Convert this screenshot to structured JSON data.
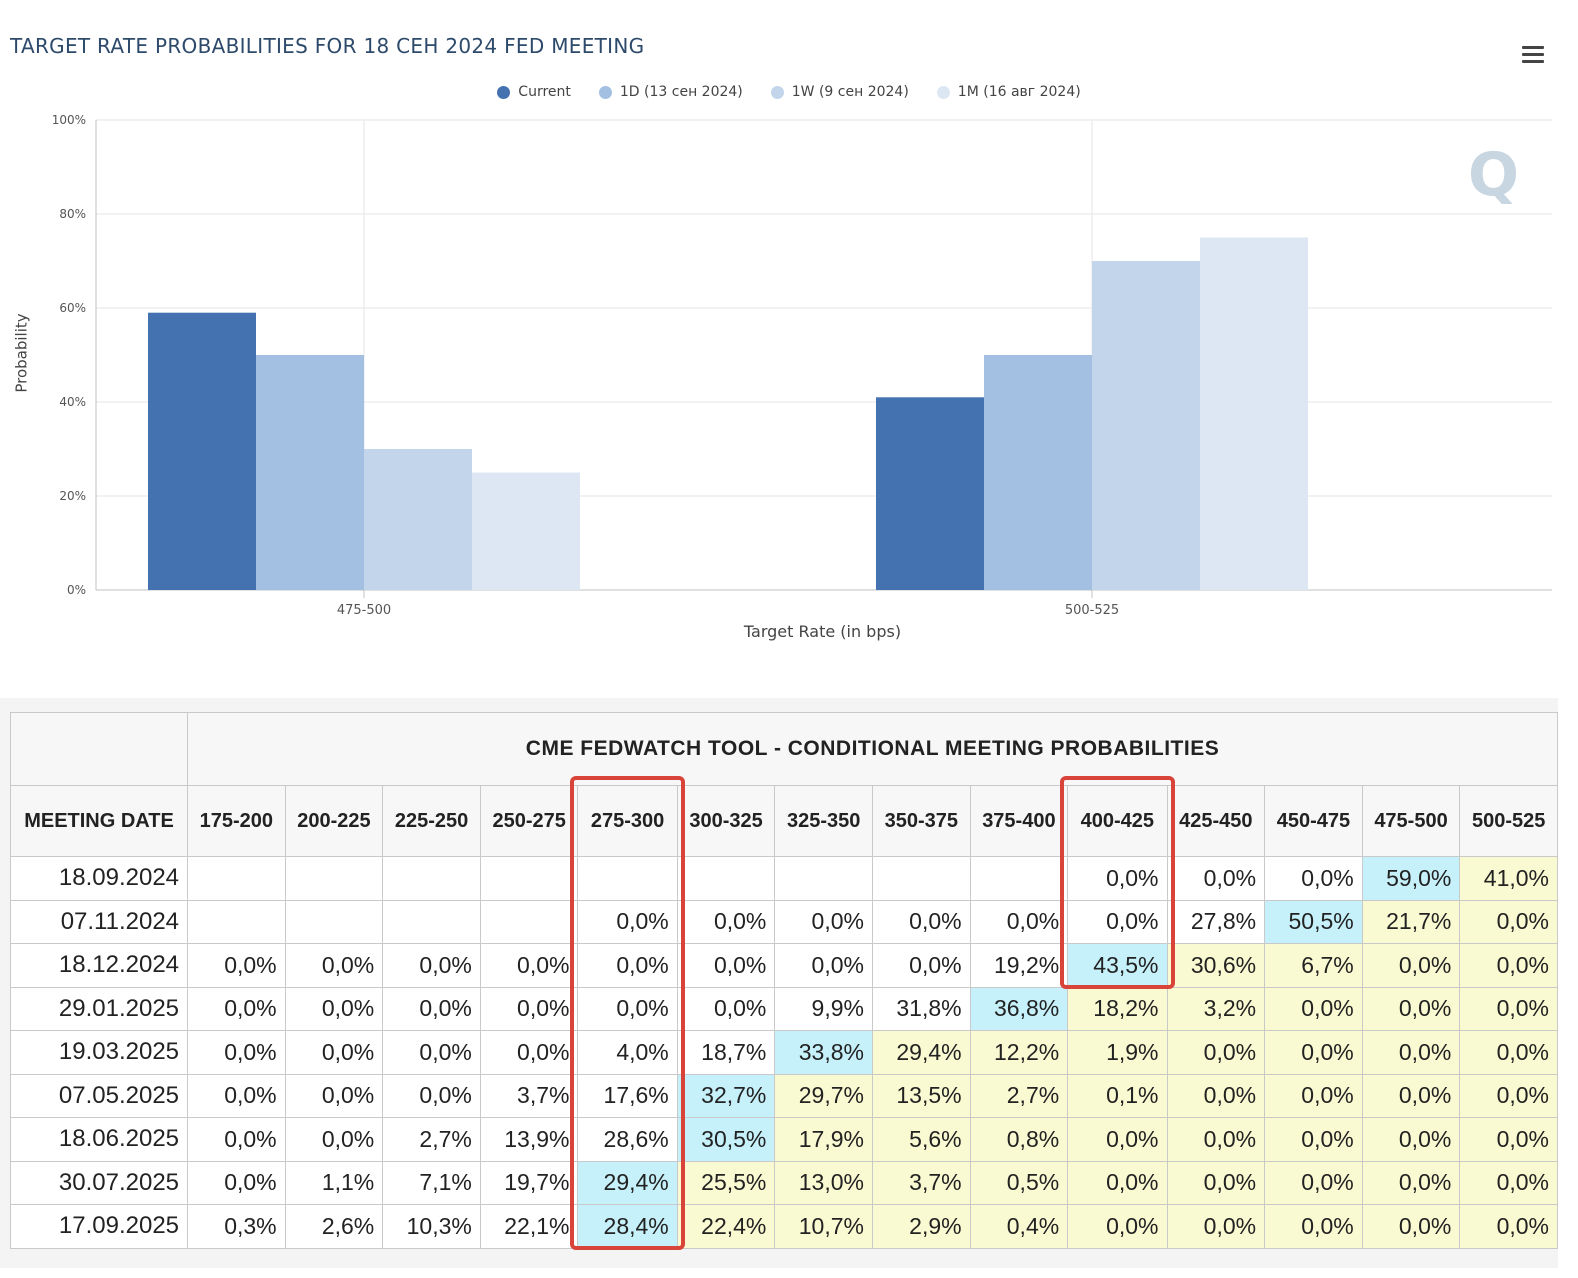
{
  "chart_data": {
    "type": "bar",
    "title": "TARGET RATE PROBABILITIES FOR 18 СЕН 2024 FED MEETING",
    "xlabel": "Target Rate (in bps)",
    "ylabel": "Probability",
    "ylim": [
      0,
      100
    ],
    "y_ticks": [
      "0%",
      "20%",
      "40%",
      "60%",
      "80%",
      "100%"
    ],
    "categories": [
      "475-500",
      "500-525"
    ],
    "series": [
      {
        "name": "Current",
        "values": [
          59.0,
          41.0
        ],
        "color": "#4472b0"
      },
      {
        "name": "1D (13 сен 2024)",
        "values": [
          50.0,
          50.0
        ],
        "color": "#a3bfe2"
      },
      {
        "name": "1W (9 сен 2024)",
        "values": [
          30.0,
          70.0
        ],
        "color": "#c3d5eb"
      },
      {
        "name": "1M (16 авг 2024)",
        "values": [
          25.0,
          75.0
        ],
        "color": "#dde7f4"
      }
    ],
    "legend_position": "top-center",
    "grid": true
  },
  "menu_icon": "hamburger-menu-icon",
  "watermark": "Q",
  "table": {
    "caption": "CME FEDWATCH TOOL - CONDITIONAL MEETING PROBABILITIES",
    "date_header": "MEETING DATE",
    "columns": [
      "175-200",
      "200-225",
      "225-250",
      "250-275",
      "275-300",
      "300-325",
      "325-350",
      "350-375",
      "375-400",
      "400-425",
      "425-450",
      "450-475",
      "475-500",
      "500-525"
    ],
    "rows": [
      {
        "date": "18.09.2024",
        "values": [
          "",
          "",
          "",
          "",
          "",
          "",
          "",
          "",
          "",
          "0,0%",
          "0,0%",
          "0,0%",
          "59,0%",
          "41,0%"
        ]
      },
      {
        "date": "07.11.2024",
        "values": [
          "",
          "",
          "",
          "",
          "0,0%",
          "0,0%",
          "0,0%",
          "0,0%",
          "0,0%",
          "0,0%",
          "27,8%",
          "50,5%",
          "21,7%",
          "0,0%"
        ]
      },
      {
        "date": "18.12.2024",
        "values": [
          "0,0%",
          "0,0%",
          "0,0%",
          "0,0%",
          "0,0%",
          "0,0%",
          "0,0%",
          "0,0%",
          "19,2%",
          "43,5%",
          "30,6%",
          "6,7%",
          "0,0%",
          "0,0%"
        ]
      },
      {
        "date": "29.01.2025",
        "values": [
          "0,0%",
          "0,0%",
          "0,0%",
          "0,0%",
          "0,0%",
          "0,0%",
          "9,9%",
          "31,8%",
          "36,8%",
          "18,2%",
          "3,2%",
          "0,0%",
          "0,0%",
          "0,0%"
        ]
      },
      {
        "date": "19.03.2025",
        "values": [
          "0,0%",
          "0,0%",
          "0,0%",
          "0,0%",
          "4,0%",
          "18,7%",
          "33,8%",
          "29,4%",
          "12,2%",
          "1,9%",
          "0,0%",
          "0,0%",
          "0,0%",
          "0,0%"
        ]
      },
      {
        "date": "07.05.2025",
        "values": [
          "0,0%",
          "0,0%",
          "0,0%",
          "3,7%",
          "17,6%",
          "32,7%",
          "29,7%",
          "13,5%",
          "2,7%",
          "0,1%",
          "0,0%",
          "0,0%",
          "0,0%",
          "0,0%"
        ]
      },
      {
        "date": "18.06.2025",
        "values": [
          "0,0%",
          "0,0%",
          "2,7%",
          "13,9%",
          "28,6%",
          "30,5%",
          "17,9%",
          "5,6%",
          "0,8%",
          "0,0%",
          "0,0%",
          "0,0%",
          "0,0%",
          "0,0%"
        ]
      },
      {
        "date": "30.07.2025",
        "values": [
          "0,0%",
          "1,1%",
          "7,1%",
          "19,7%",
          "29,4%",
          "25,5%",
          "13,0%",
          "3,7%",
          "0,5%",
          "0,0%",
          "0,0%",
          "0,0%",
          "0,0%",
          "0,0%"
        ]
      },
      {
        "date": "17.09.2025",
        "values": [
          "0,3%",
          "2,6%",
          "10,3%",
          "22,1%",
          "28,4%",
          "22,4%",
          "10,7%",
          "2,9%",
          "0,4%",
          "0,0%",
          "0,0%",
          "0,0%",
          "0,0%",
          "0,0%"
        ]
      }
    ],
    "highlight": {
      "cyan": [
        [
          0,
          12
        ],
        [
          1,
          11
        ],
        [
          2,
          9
        ],
        [
          3,
          8
        ],
        [
          4,
          6
        ],
        [
          5,
          5
        ],
        [
          6,
          5
        ],
        [
          7,
          4
        ],
        [
          8,
          4
        ]
      ],
      "yellow_after_cyan": true
    },
    "boxed_columns": [
      "275-300",
      "400-425"
    ],
    "colors": {
      "cyan": "#c6f0fa",
      "yellow": "#fafad2",
      "box": "#d9443a"
    }
  }
}
